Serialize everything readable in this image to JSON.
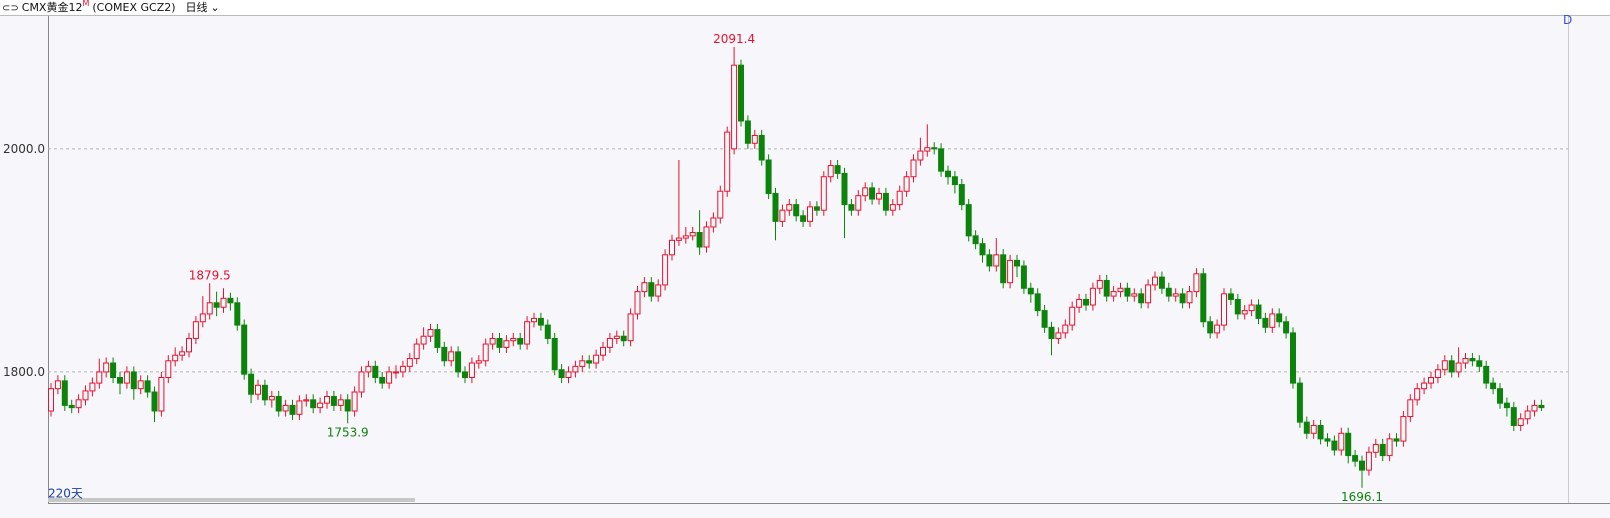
{
  "header": {
    "symbol": "CMX黄金12",
    "superscript": "M",
    "code": "(COMEX GCZ2)",
    "period": "日线",
    "span": "220天",
    "corner": "D"
  },
  "chart_data": {
    "type": "candlestick",
    "up_color": "#e8112d",
    "down_color": "#0c840c",
    "grid": true,
    "ylim": [
      1682.5,
      2120
    ],
    "yticks": [
      {
        "value": 1800,
        "label": "1800.0"
      },
      {
        "value": 2000,
        "label": "2000.0"
      }
    ],
    "open": [
      1765,
      1785,
      1792,
      1770,
      1768,
      1775,
      1783,
      1790,
      1800,
      1808,
      1795,
      1790,
      1800,
      1785,
      1792,
      1782,
      1765,
      1795,
      1810,
      1815,
      1818,
      1830,
      1845,
      1852,
      1862,
      1858,
      1866,
      1862,
      1842,
      1798,
      1780,
      1788,
      1775,
      1778,
      1765,
      1770,
      1762,
      1774,
      1775,
      1768,
      1772,
      1778,
      1770,
      1775,
      1765,
      1782,
      1800,
      1805,
      1795,
      1790,
      1800,
      1800,
      1805,
      1812,
      1825,
      1832,
      1838,
      1822,
      1810,
      1818,
      1800,
      1795,
      1808,
      1810,
      1825,
      1830,
      1822,
      1828,
      1830,
      1825,
      1845,
      1848,
      1842,
      1830,
      1802,
      1795,
      1800,
      1805,
      1810,
      1808,
      1815,
      1822,
      1830,
      1832,
      1828,
      1852,
      1872,
      1880,
      1868,
      1878,
      1905,
      1918,
      1920,
      1922,
      1925,
      1912,
      1930,
      1938,
      1962,
      2000,
      2075,
      2025,
      2005,
      2012,
      1990,
      1960,
      1935,
      1945,
      1950,
      1940,
      1935,
      1948,
      1945,
      1975,
      1985,
      1978,
      1950,
      1945,
      1958,
      1965,
      1955,
      1960,
      1945,
      1950,
      1962,
      1975,
      1990,
      1998,
      2001,
      2000,
      1980,
      1975,
      1968,
      1950,
      1922,
      1915,
      1905,
      1895,
      1905,
      1880,
      1900,
      1895,
      1875,
      1870,
      1855,
      1840,
      1830,
      1835,
      1842,
      1858,
      1865,
      1860,
      1875,
      1882,
      1868,
      1872,
      1875,
      1868,
      1870,
      1862,
      1878,
      1885,
      1875,
      1868,
      1870,
      1862,
      1872,
      1888,
      1845,
      1835,
      1842,
      1870,
      1865,
      1852,
      1855,
      1860,
      1848,
      1840,
      1852,
      1845,
      1835,
      1790,
      1755,
      1745,
      1752,
      1740,
      1738,
      1730,
      1745,
      1725,
      1720,
      1712,
      1728,
      1735,
      1725,
      1740,
      1738,
      1760,
      1775,
      1785,
      1790,
      1795,
      1802,
      1810,
      1800,
      1808,
      1812,
      1810,
      1805,
      1790,
      1785,
      1772,
      1768,
      1752,
      1758,
      1765,
      1770
    ],
    "high": [
      1790,
      1797,
      1797,
      1775,
      1780,
      1788,
      1795,
      1812,
      1813,
      1813,
      1800,
      1805,
      1805,
      1797,
      1797,
      1787,
      1800,
      1815,
      1822,
      1823,
      1835,
      1850,
      1868,
      1879.5,
      1872,
      1875,
      1871,
      1867,
      1847,
      1803,
      1793,
      1793,
      1783,
      1783,
      1775,
      1775,
      1779,
      1780,
      1780,
      1777,
      1783,
      1783,
      1780,
      1780,
      1787,
      1805,
      1810,
      1810,
      1800,
      1805,
      1806,
      1810,
      1817,
      1830,
      1840,
      1843,
      1843,
      1827,
      1823,
      1823,
      1805,
      1813,
      1815,
      1830,
      1835,
      1835,
      1833,
      1835,
      1835,
      1850,
      1853,
      1853,
      1847,
      1835,
      1807,
      1805,
      1810,
      1815,
      1815,
      1820,
      1827,
      1835,
      1837,
      1837,
      1857,
      1877,
      1885,
      1885,
      1883,
      1910,
      1923,
      1990,
      1930,
      1930,
      1945,
      1935,
      1943,
      1967,
      2020,
      2091.4,
      2080,
      2030,
      2017,
      2017,
      1995,
      1965,
      1950,
      1955,
      1955,
      1945,
      1953,
      1953,
      1980,
      1990,
      1990,
      1983,
      1955,
      1963,
      1970,
      1970,
      1965,
      1965,
      1955,
      1967,
      1980,
      1995,
      2010,
      2022,
      2006,
      2005,
      1985,
      1980,
      1973,
      1955,
      1927,
      1920,
      1910,
      1920,
      1910,
      1905,
      1905,
      1900,
      1880,
      1875,
      1860,
      1845,
      1840,
      1847,
      1863,
      1870,
      1870,
      1880,
      1887,
      1887,
      1877,
      1880,
      1880,
      1875,
      1875,
      1883,
      1890,
      1890,
      1880,
      1875,
      1875,
      1877,
      1893,
      1893,
      1850,
      1847,
      1875,
      1875,
      1870,
      1860,
      1865,
      1865,
      1853,
      1857,
      1857,
      1850,
      1840,
      1795,
      1760,
      1757,
      1757,
      1745,
      1743,
      1750,
      1750,
      1730,
      1725,
      1733,
      1740,
      1740,
      1745,
      1745,
      1765,
      1780,
      1790,
      1795,
      1800,
      1807,
      1815,
      1815,
      1822,
      1817,
      1817,
      1815,
      1810,
      1795,
      1790,
      1777,
      1773,
      1763,
      1770,
      1775,
      1775
    ],
    "low": [
      1760,
      1780,
      1765,
      1763,
      1763,
      1770,
      1778,
      1785,
      1795,
      1790,
      1780,
      1785,
      1775,
      1780,
      1777,
      1755,
      1760,
      1790,
      1805,
      1810,
      1813,
      1825,
      1840,
      1847,
      1850,
      1853,
      1855,
      1837,
      1793,
      1772,
      1775,
      1770,
      1768,
      1760,
      1760,
      1757,
      1757,
      1769,
      1763,
      1763,
      1767,
      1765,
      1765,
      1753.9,
      1760,
      1777,
      1795,
      1790,
      1785,
      1785,
      1794,
      1795,
      1800,
      1807,
      1820,
      1827,
      1817,
      1805,
      1805,
      1795,
      1790,
      1790,
      1803,
      1805,
      1820,
      1817,
      1817,
      1823,
      1820,
      1820,
      1840,
      1837,
      1825,
      1797,
      1790,
      1790,
      1795,
      1800,
      1803,
      1803,
      1810,
      1817,
      1825,
      1823,
      1823,
      1847,
      1867,
      1863,
      1863,
      1873,
      1900,
      1913,
      1915,
      1918,
      1905,
      1907,
      1925,
      1933,
      1957,
      1995,
      2020,
      2000,
      2000,
      1985,
      1955,
      1918,
      1930,
      1940,
      1935,
      1930,
      1930,
      1940,
      1940,
      1970,
      1973,
      1920,
      1940,
      1940,
      1953,
      1950,
      1950,
      1940,
      1940,
      1945,
      1957,
      1970,
      1985,
      1993,
      1995,
      1975,
      1968,
      1960,
      1945,
      1917,
      1910,
      1898,
      1890,
      1890,
      1875,
      1875,
      1885,
      1870,
      1862,
      1850,
      1835,
      1815,
      1825,
      1830,
      1837,
      1853,
      1855,
      1855,
      1870,
      1863,
      1863,
      1867,
      1863,
      1863,
      1857,
      1857,
      1873,
      1870,
      1863,
      1863,
      1857,
      1857,
      1867,
      1840,
      1830,
      1830,
      1837,
      1860,
      1847,
      1847,
      1850,
      1843,
      1835,
      1835,
      1840,
      1830,
      1785,
      1750,
      1740,
      1740,
      1735,
      1733,
      1725,
      1725,
      1718,
      1715,
      1696.1,
      1707,
      1723,
      1720,
      1720,
      1733,
      1733,
      1755,
      1770,
      1780,
      1785,
      1790,
      1797,
      1795,
      1795,
      1803,
      1805,
      1800,
      1785,
      1780,
      1767,
      1760,
      1747,
      1747,
      1753,
      1760,
      1765
    ],
    "close": [
      1785,
      1792,
      1770,
      1768,
      1775,
      1783,
      1790,
      1800,
      1808,
      1795,
      1790,
      1800,
      1785,
      1792,
      1782,
      1765,
      1795,
      1810,
      1815,
      1818,
      1830,
      1845,
      1852,
      1862,
      1858,
      1866,
      1862,
      1842,
      1798,
      1780,
      1788,
      1775,
      1778,
      1765,
      1770,
      1762,
      1774,
      1775,
      1768,
      1772,
      1778,
      1770,
      1775,
      1765,
      1782,
      1800,
      1805,
      1795,
      1790,
      1800,
      1800,
      1805,
      1812,
      1825,
      1832,
      1838,
      1822,
      1810,
      1818,
      1800,
      1795,
      1808,
      1810,
      1825,
      1830,
      1822,
      1828,
      1830,
      1825,
      1845,
      1848,
      1842,
      1830,
      1802,
      1795,
      1800,
      1805,
      1810,
      1808,
      1815,
      1822,
      1830,
      1832,
      1828,
      1852,
      1872,
      1880,
      1868,
      1878,
      1905,
      1918,
      1920,
      1922,
      1925,
      1912,
      1930,
      1938,
      1962,
      2015,
      2075,
      2025,
      2005,
      2012,
      1990,
      1960,
      1935,
      1945,
      1950,
      1940,
      1935,
      1948,
      1945,
      1975,
      1985,
      1978,
      1950,
      1945,
      1958,
      1965,
      1955,
      1960,
      1945,
      1950,
      1962,
      1975,
      1990,
      1998,
      2001,
      2000,
      1980,
      1975,
      1968,
      1950,
      1922,
      1915,
      1905,
      1895,
      1905,
      1880,
      1900,
      1895,
      1875,
      1870,
      1855,
      1840,
      1830,
      1835,
      1842,
      1858,
      1865,
      1860,
      1875,
      1882,
      1868,
      1872,
      1875,
      1868,
      1870,
      1862,
      1878,
      1885,
      1875,
      1868,
      1870,
      1862,
      1872,
      1888,
      1845,
      1835,
      1842,
      1870,
      1865,
      1852,
      1855,
      1860,
      1848,
      1840,
      1852,
      1845,
      1835,
      1790,
      1755,
      1745,
      1752,
      1740,
      1738,
      1730,
      1745,
      1725,
      1720,
      1712,
      1728,
      1735,
      1725,
      1740,
      1738,
      1760,
      1775,
      1785,
      1790,
      1795,
      1802,
      1810,
      1800,
      1808,
      1812,
      1810,
      1805,
      1790,
      1785,
      1772,
      1768,
      1752,
      1758,
      1765,
      1770,
      1768
    ]
  }
}
